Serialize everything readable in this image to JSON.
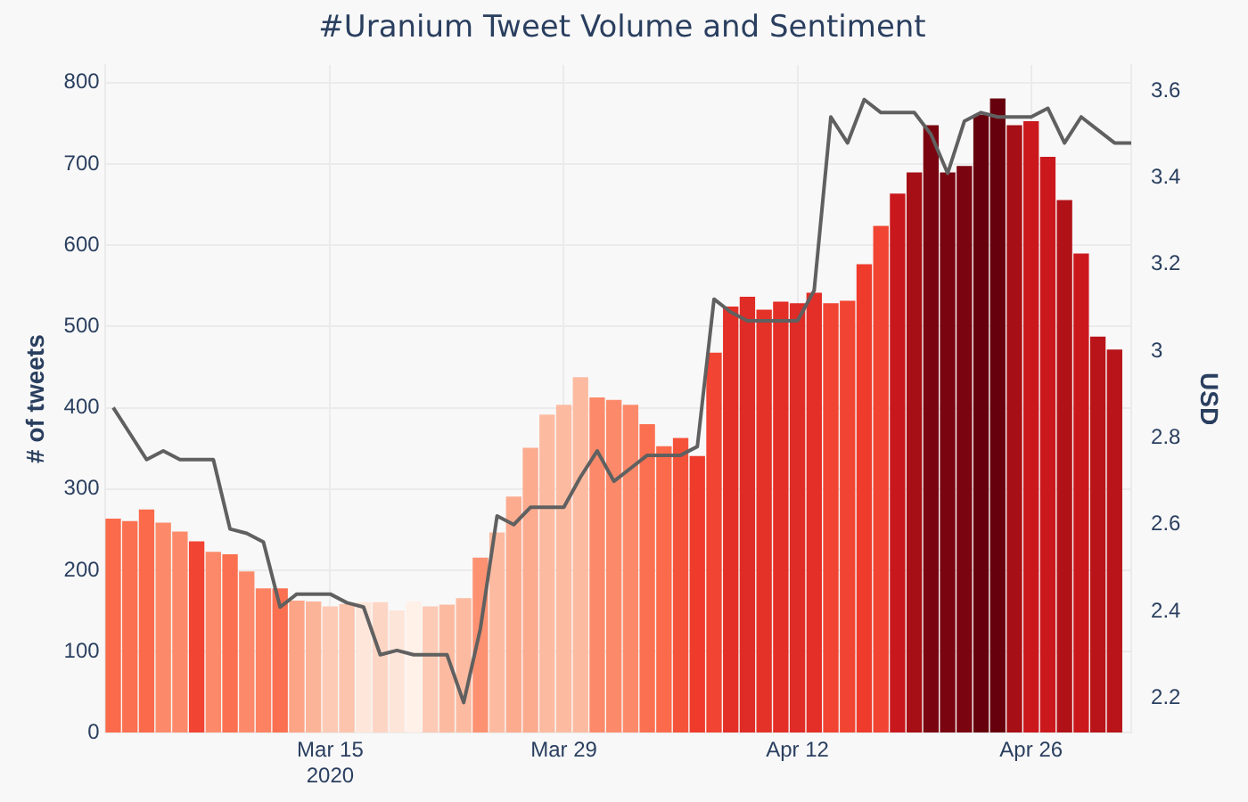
{
  "chart_data": {
    "type": "bar",
    "title": "#Uranium Tweet Volume and Sentiment",
    "ylabel": "# of tweets",
    "y2label": "USD",
    "x": [
      "2020-03-02",
      "2020-03-03",
      "2020-03-04",
      "2020-03-05",
      "2020-03-06",
      "2020-03-07",
      "2020-03-08",
      "2020-03-09",
      "2020-03-10",
      "2020-03-11",
      "2020-03-12",
      "2020-03-13",
      "2020-03-14",
      "2020-03-15",
      "2020-03-16",
      "2020-03-17",
      "2020-03-18",
      "2020-03-19",
      "2020-03-20",
      "2020-03-21",
      "2020-03-22",
      "2020-03-23",
      "2020-03-24",
      "2020-03-25",
      "2020-03-26",
      "2020-03-27",
      "2020-03-28",
      "2020-03-29",
      "2020-03-30",
      "2020-03-31",
      "2020-04-01",
      "2020-04-02",
      "2020-04-03",
      "2020-04-04",
      "2020-04-05",
      "2020-04-06",
      "2020-04-07",
      "2020-04-08",
      "2020-04-09",
      "2020-04-10",
      "2020-04-11",
      "2020-04-12",
      "2020-04-13",
      "2020-04-14",
      "2020-04-15",
      "2020-04-16",
      "2020-04-17",
      "2020-04-18",
      "2020-04-19",
      "2020-04-20",
      "2020-04-21",
      "2020-04-22",
      "2020-04-23",
      "2020-04-24",
      "2020-04-25",
      "2020-04-26",
      "2020-04-27",
      "2020-04-28",
      "2020-04-29",
      "2020-04-30",
      "2020-05-01"
    ],
    "series": [
      {
        "values": [
          263,
          260,
          274,
          258,
          247,
          235,
          222,
          219,
          198,
          177,
          177,
          162,
          161,
          155,
          158,
          160,
          160,
          150,
          161,
          155,
          157,
          165,
          215,
          246,
          290,
          350,
          391,
          403,
          437,
          412,
          409,
          403,
          379,
          352,
          362,
          340,
          467,
          524,
          536,
          520,
          530,
          528,
          541,
          528,
          531,
          576,
          623,
          663,
          689,
          747,
          689,
          697,
          760,
          780,
          747,
          752,
          708,
          655,
          589,
          487,
          471
        ],
        "colors": [
          "#fb6a4a",
          "#fb7050",
          "#fb6a4a",
          "#fc8a6a",
          "#fc8a6a",
          "#f14432",
          "#fc8a6a",
          "#fb7050",
          "#fc8a6a",
          "#fc8262",
          "#fb7050",
          "#fca486",
          "#fcb499",
          "#fdcab5",
          "#fcc4ad",
          "#fee6da",
          "#fdd5c4",
          "#fee5d9",
          "#fff0e8",
          "#fdcab5",
          "#fcbba1",
          "#fcbba1",
          "#fc9272",
          "#fcbba1",
          "#fcab8f",
          "#fcab8f",
          "#fcbba1",
          "#fcbba1",
          "#fcbba1",
          "#fc8a6a",
          "#fc8a6a",
          "#fc8a6a",
          "#fb7050",
          "#fb6a4a",
          "#f5523a",
          "#ef3b2c",
          "#f14432",
          "#e32f27",
          "#e02c26",
          "#e53228",
          "#e32f27",
          "#e02c26",
          "#e32f27",
          "#f14432",
          "#f14432",
          "#ef3b2c",
          "#f14432",
          "#c9181d",
          "#a50f15",
          "#7a0510",
          "#7a0510",
          "#7a0510",
          "#67000d",
          "#67000d",
          "#a50f15",
          "#cb181d",
          "#cb181d",
          "#b11218",
          "#cb181d",
          "#b81419",
          "#b81419"
        ]
      },
      {
        "type": "line",
        "axis": "y2",
        "color": "#606060",
        "x": [
          "2020-03-02",
          "2020-03-03",
          "2020-03-04",
          "2020-03-05",
          "2020-03-06",
          "2020-03-07",
          "2020-03-08",
          "2020-03-09",
          "2020-03-10",
          "2020-03-11",
          "2020-03-12",
          "2020-03-13",
          "2020-03-14",
          "2020-03-15",
          "2020-03-16",
          "2020-03-17",
          "2020-03-18",
          "2020-03-19",
          "2020-03-20",
          "2020-03-21",
          "2020-03-22",
          "2020-03-23",
          "2020-03-24",
          "2020-03-25",
          "2020-03-26",
          "2020-03-27",
          "2020-03-28",
          "2020-03-29",
          "2020-03-30",
          "2020-03-31",
          "2020-04-01",
          "2020-04-02",
          "2020-04-03",
          "2020-04-04",
          "2020-04-05",
          "2020-04-06",
          "2020-04-07",
          "2020-04-08",
          "2020-04-09",
          "2020-04-10",
          "2020-04-11",
          "2020-04-12",
          "2020-04-13",
          "2020-04-14",
          "2020-04-15",
          "2020-04-16",
          "2020-04-17",
          "2020-04-18",
          "2020-04-19",
          "2020-04-20",
          "2020-04-21",
          "2020-04-22",
          "2020-04-23",
          "2020-04-24",
          "2020-04-25",
          "2020-04-26",
          "2020-04-27",
          "2020-04-28",
          "2020-04-29",
          "2020-04-30",
          "2020-05-01",
          "2020-05-02"
        ],
        "values": [
          2.87,
          2.81,
          2.75,
          2.77,
          2.75,
          2.75,
          2.75,
          2.59,
          2.58,
          2.56,
          2.41,
          2.44,
          2.44,
          2.44,
          2.42,
          2.41,
          2.3,
          2.31,
          2.3,
          2.3,
          2.3,
          2.19,
          2.36,
          2.62,
          2.6,
          2.64,
          2.64,
          2.64,
          2.71,
          2.77,
          2.7,
          2.73,
          2.76,
          2.76,
          2.76,
          2.78,
          3.12,
          3.09,
          3.07,
          3.07,
          3.07,
          3.07,
          3.14,
          3.54,
          3.48,
          3.58,
          3.55,
          3.55,
          3.55,
          3.5,
          3.41,
          3.53,
          3.55,
          3.54,
          3.54,
          3.54,
          3.56,
          3.48,
          3.54,
          3.51,
          3.48,
          3.48
        ]
      }
    ],
    "xlim": [
      "2020-03-01T12:00",
      "2020-05-02"
    ],
    "xticks": [
      {
        "value": "2020-03-15",
        "label": "Mar 15\n2020"
      },
      {
        "value": "2020-03-29",
        "label": "Mar 29"
      },
      {
        "value": "2020-04-12",
        "label": "Apr 12"
      },
      {
        "value": "2020-04-26",
        "label": "Apr 26"
      }
    ],
    "ylim": [
      0,
      822
    ],
    "yticks": [
      0,
      100,
      200,
      300,
      400,
      500,
      600,
      700,
      800
    ],
    "y2lim": [
      2.12,
      3.66
    ],
    "y2ticks": [
      2.2,
      2.4,
      2.6,
      2.8,
      3,
      3.2,
      3.4,
      3.6
    ],
    "grid": true,
    "legend": false,
    "marker": "none",
    "line_style": "solid"
  }
}
